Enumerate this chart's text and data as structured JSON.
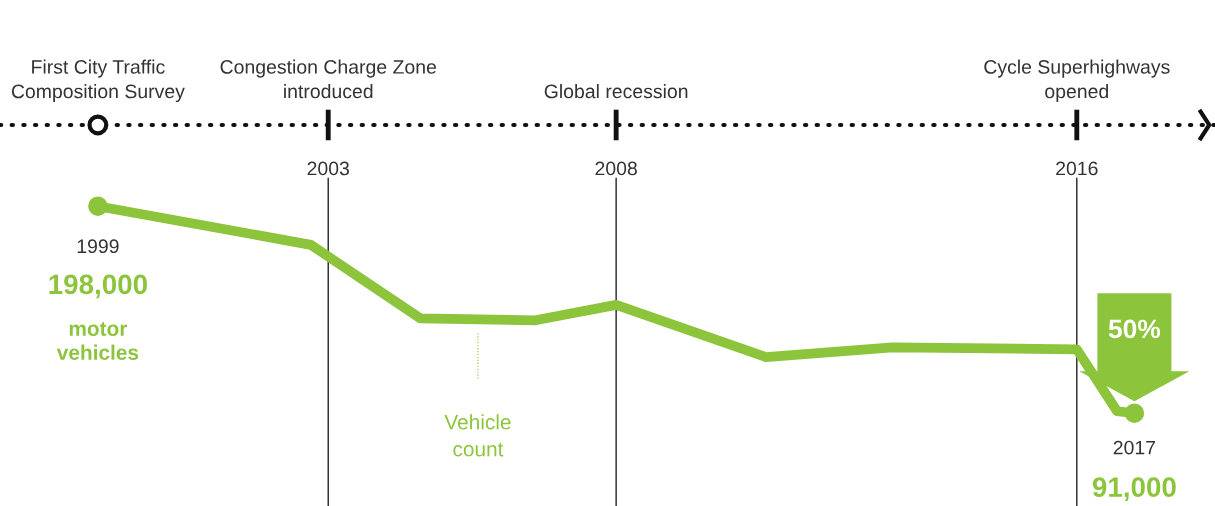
{
  "chart_data": {
    "type": "line",
    "x": [
      1999,
      2002.7,
      2004.6,
      2006.6,
      2008.0,
      2010.6,
      2012.8,
      2016.0,
      2016.7,
      2017
    ],
    "series": [
      {
        "color": "#8cc43c",
        "values": [
          198000,
          178000,
          140000,
          139000,
          147000,
          120000,
          125000,
          124000,
          92000,
          91000
        ],
        "value_labels": [
          "198,000",
          null,
          null,
          null,
          null,
          null,
          null,
          null,
          null,
          "91,000"
        ]
      }
    ],
    "xlim": [
      1997.3,
      2018.4
    ],
    "xticks": [
      2003,
      2008,
      2016
    ],
    "ylim": [
      43000,
      240000
    ],
    "ref_lines": [
      {
        "axis": "x",
        "value": 2003,
        "color": "#222222"
      },
      {
        "axis": "x",
        "value": 2008,
        "color": "#222222"
      },
      {
        "axis": "x",
        "value": 2016,
        "color": "#222222"
      }
    ],
    "annotations": [
      "First City Traffic Composition Survey",
      "Congestion Charge Zone introduced",
      "Global recession",
      "Cycle Superhighways opened",
      {
        "text": "1999",
        "x": 1999,
        "y": 198000
      },
      "motor vehicles",
      "Vehicle count",
      "50%",
      {
        "text": "2017",
        "x": 2017,
        "y": 91000
      }
    ],
    "line_style": "solid"
  }
}
